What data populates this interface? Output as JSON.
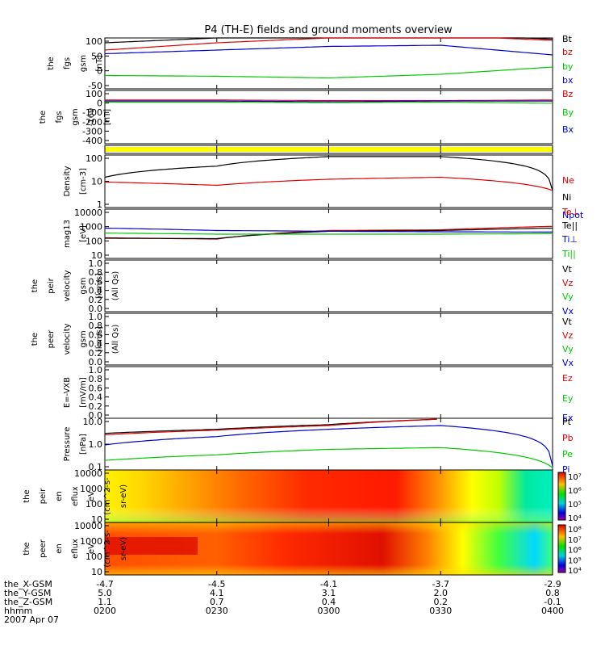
{
  "title": "P4 (TH-E) fields and ground moments overview",
  "colors": {
    "black": "#000000",
    "red": "#e00000",
    "green": "#00c800",
    "blue": "#0000d0",
    "yellow": "#ffff00",
    "grid": "#000000"
  },
  "panels": [
    {
      "id": "fgs",
      "ylabel": [
        "the",
        "fgs",
        "gsm",
        "[nT]"
      ],
      "ticks": [
        "100",
        "50",
        "0",
        "-50"
      ],
      "legend": [
        {
          "text": "Bt",
          "color": "black"
        },
        {
          "text": "bz",
          "color": "red"
        },
        {
          "text": "by",
          "color": "green"
        },
        {
          "text": "bx",
          "color": "blue"
        }
      ]
    },
    {
      "id": "fgs169",
      "ylabel": [
        "the",
        "fgs",
        "gsm",
        "-169",
        "[nT]"
      ],
      "ticks": [
        "100",
        "0",
        "-100",
        "-200",
        "-300",
        "-400"
      ],
      "legend": [
        {
          "text": "Bz",
          "color": "red"
        },
        {
          "text": "By",
          "color": "green"
        },
        {
          "text": "Bx",
          "color": "blue"
        }
      ]
    },
    {
      "id": "flag",
      "ylabel": [],
      "ticks": [],
      "legend": []
    },
    {
      "id": "density",
      "ylabel": [
        "Density",
        "[cm-3]"
      ],
      "ticks": [
        "100",
        "10",
        "1"
      ],
      "legend": [
        {
          "text": "Ne",
          "color": "red"
        },
        {
          "text": "Ni",
          "color": "black"
        },
        {
          "text": "Npot",
          "color": "blue"
        }
      ]
    },
    {
      "id": "temp",
      "ylabel": [
        "mag13",
        "[eV]"
      ],
      "ticks": [
        "10000",
        "1000",
        "100",
        "10"
      ],
      "legend": [
        {
          "text": "Te⊥",
          "color": "red"
        },
        {
          "text": "Te||",
          "color": "black"
        },
        {
          "text": "Ti⊥",
          "color": "blue"
        },
        {
          "text": "Ti||",
          "color": "green"
        }
      ]
    },
    {
      "id": "peir_vel",
      "ylabel": [
        "the",
        "peir",
        "velocity",
        "gsm",
        "[km/s]",
        "(All Qs)"
      ],
      "ticks": [
        "1.0",
        "0.8",
        "0.6",
        "0.4",
        "0.2",
        "0.0"
      ],
      "legend": [
        {
          "text": "Vt",
          "color": "black"
        },
        {
          "text": "Vz",
          "color": "red"
        },
        {
          "text": "Vy",
          "color": "green"
        },
        {
          "text": "Vx",
          "color": "blue"
        }
      ]
    },
    {
      "id": "peer_vel",
      "ylabel": [
        "the",
        "peer",
        "velocity",
        "gsm",
        "[km/s]",
        "(All Qs)"
      ],
      "ticks": [
        "1.0",
        "0.8",
        "0.6",
        "0.4",
        "0.2",
        "0.0"
      ],
      "legend": [
        {
          "text": "Vt",
          "color": "black"
        },
        {
          "text": "Vz",
          "color": "red"
        },
        {
          "text": "Vy",
          "color": "green"
        },
        {
          "text": "Vx",
          "color": "blue"
        }
      ]
    },
    {
      "id": "efield",
      "ylabel": [
        "E=-VXB",
        "[mV/m]"
      ],
      "ticks": [
        "1.0",
        "0.8",
        "0.6",
        "0.4",
        "0.2",
        "0.0"
      ],
      "legend": [
        {
          "text": "Ez",
          "color": "red"
        },
        {
          "text": "Ey",
          "color": "green"
        },
        {
          "text": "Ex",
          "color": "blue"
        }
      ]
    },
    {
      "id": "pressure",
      "ylabel": [
        "Pressure",
        "[nPa]"
      ],
      "ticks": [
        "10.0",
        "1.0",
        "0.1"
      ],
      "legend": [
        {
          "text": "Pt",
          "color": "black"
        },
        {
          "text": "Pb",
          "color": "red"
        },
        {
          "text": "Pe",
          "color": "green"
        },
        {
          "text": "Pi",
          "color": "blue"
        }
      ]
    },
    {
      "id": "peir_spec",
      "ylabel": [
        "the",
        "peir",
        "en",
        "eflux",
        "eV",
        "(cm^2-s-",
        "sr-eV)"
      ],
      "ticks": [
        "10000",
        "1000",
        "100",
        "10"
      ],
      "colorbar": [
        "10⁷",
        "10⁶",
        "10⁵",
        "10⁴"
      ]
    },
    {
      "id": "peer_spec",
      "ylabel": [
        "the",
        "peer",
        "en",
        "eflux",
        "eV",
        "(cm^2-s-",
        "sr-eV)"
      ],
      "ticks": [
        "10000",
        "1000",
        "100",
        "10"
      ],
      "colorbar": [
        "10⁸",
        "10⁷",
        "10⁶",
        "10⁵",
        "10⁴"
      ]
    }
  ],
  "xaxis": {
    "rows": [
      {
        "label": "the_X-GSM",
        "values": [
          "-4.7",
          "-4.5",
          "-4.1",
          "-3.7",
          "-2.9"
        ]
      },
      {
        "label": "the_Y-GSM",
        "values": [
          "5.0",
          "4.1",
          "3.1",
          "2.0",
          "0.8"
        ]
      },
      {
        "label": "the_Z-GSM",
        "values": [
          "1.1",
          "0.7",
          "0.4",
          "0.2",
          "-0.1"
        ]
      },
      {
        "label": "hhmm",
        "values": [
          "0200",
          "0230",
          "0300",
          "0330",
          "0400"
        ]
      }
    ],
    "date": "2007 Apr 07"
  },
  "chart_data": [
    {
      "type": "line",
      "title": "P4 (TH-E) fields and ground moments overview",
      "x": [
        "0200",
        "0230",
        "0300",
        "0330",
        "0400"
      ],
      "ylabel": "the fgs gsm [nT]",
      "ylim": [
        -100,
        110
      ],
      "series": [
        {
          "name": "Bt",
          "values": [
            90,
            110,
            120,
            125,
            105
          ]
        },
        {
          "name": "bz",
          "values": [
            60,
            90,
            110,
            120,
            100
          ]
        },
        {
          "name": "by",
          "values": [
            -45,
            -48,
            -55,
            -40,
            -10
          ]
        },
        {
          "name": "bx",
          "values": [
            45,
            60,
            75,
            80,
            40
          ]
        }
      ]
    },
    {
      "type": "line",
      "ylabel": "the fgs gsm -169 [nT]",
      "ylim": [
        -400,
        100
      ],
      "series": [
        {
          "name": "Bz",
          "values": [
            10,
            10,
            5,
            5,
            10
          ]
        },
        {
          "name": "By",
          "values": [
            -10,
            -10,
            -15,
            -10,
            -20
          ]
        },
        {
          "name": "Bx",
          "values": [
            0,
            0,
            -5,
            0,
            0
          ]
        }
      ]
    },
    {
      "type": "line",
      "ylabel": "Density [cm-3]",
      "ylim": [
        0.1,
        200
      ],
      "scale": "log",
      "series": [
        {
          "name": "Ne",
          "values": [
            4,
            2.5,
            6,
            8,
            1.2
          ]
        },
        {
          "name": "Ni",
          "values": [
            8,
            40,
            160,
            160,
            1.2
          ]
        },
        {
          "name": "Npot",
          "values": [
            null,
            null,
            null,
            null,
            1.5
          ]
        }
      ]
    },
    {
      "type": "line",
      "ylabel": "mag13 [eV]",
      "ylim": [
        10,
        10000
      ],
      "scale": "log",
      "series": [
        {
          "name": "Te⊥",
          "values": [
            180,
            150,
            500,
            550,
            900
          ]
        },
        {
          "name": "Te||",
          "values": [
            170,
            160,
            450,
            500,
            700
          ]
        },
        {
          "name": "Ti⊥",
          "values": [
            700,
            500,
            450,
            420,
            400
          ]
        },
        {
          "name": "Ti||",
          "values": [
            350,
            300,
            300,
            300,
            320
          ]
        }
      ]
    },
    {
      "type": "line",
      "ylabel": "Pressure [nPa]",
      "ylim": [
        0.03,
        20
      ],
      "scale": "log",
      "series": [
        {
          "name": "Pt",
          "values": [
            3,
            5,
            9,
            18,
            null
          ]
        },
        {
          "name": "Pb",
          "values": [
            2.5,
            4.5,
            8,
            18,
            null
          ]
        },
        {
          "name": "Pe",
          "values": [
            0.1,
            0.2,
            0.4,
            0.5,
            0.04
          ]
        },
        {
          "name": "Pi",
          "values": [
            0.7,
            2,
            5,
            8,
            0.05
          ]
        }
      ]
    },
    {
      "type": "heatmap",
      "ylabel": "the peir en eflux",
      "ylim": [
        5,
        20000
      ],
      "scale": "log",
      "zlim": [
        "10⁴",
        "10⁷"
      ]
    },
    {
      "type": "heatmap",
      "ylabel": "the peer en eflux",
      "ylim": [
        5,
        20000
      ],
      "scale": "log",
      "zlim": [
        "10⁴",
        "10⁸"
      ]
    }
  ]
}
